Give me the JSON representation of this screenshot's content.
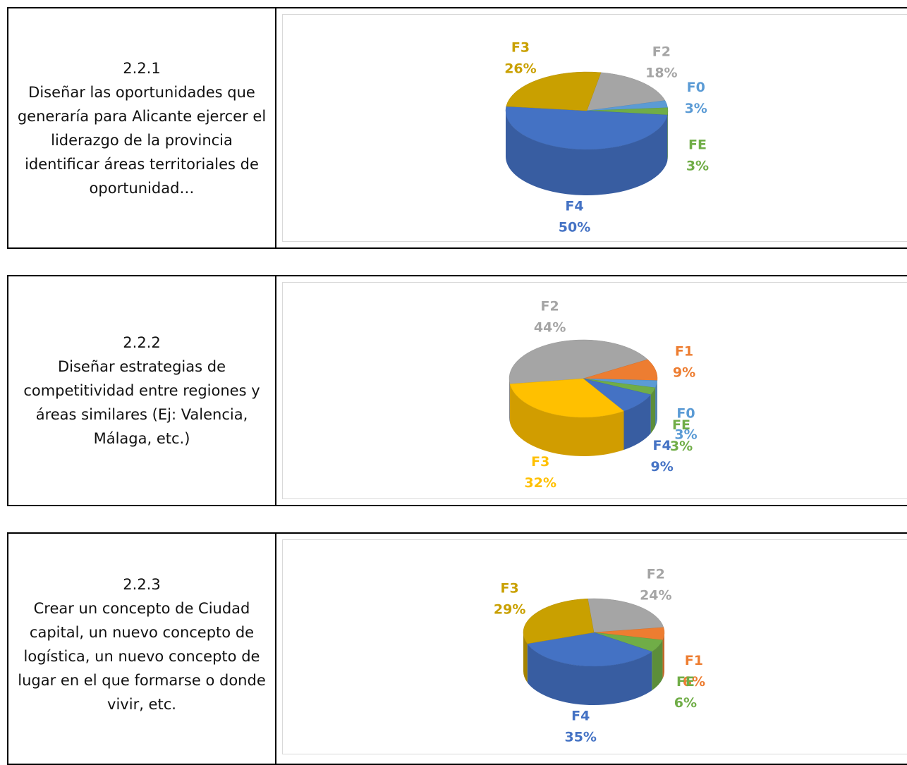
{
  "rows": [
    {
      "code": "2.2.1",
      "text": "Diseñar las oportunidades que generaría para Alicante ejercer el liderazgo de la provincia identificar áreas territoriales de oportunidad…"
    },
    {
      "code": "2.2.2",
      "text": "Diseñar estrategias de competitividad entre regiones y áreas similares (Ej: Valencia, Málaga, etc.)"
    },
    {
      "code": "2.2.3",
      "text": "Crear un concepto de Ciudad capital, un nuevo concepto de logística, un nuevo concepto de lugar en el que formarse o donde vivir, etc."
    }
  ],
  "chart_data": [
    {
      "type": "pie",
      "categories": [
        "F2",
        "F0",
        "FE",
        "F4",
        "F3"
      ],
      "values": [
        18,
        3,
        3,
        50,
        26
      ],
      "value_labels": [
        "18%",
        "3%",
        "3%",
        "50%",
        "26%"
      ],
      "colors": [
        "#a5a5a5",
        "#5b9bd5",
        "#70ad47",
        "#4472c4",
        "#c9a000"
      ]
    },
    {
      "type": "pie",
      "categories": [
        "F2",
        "F1",
        "F0",
        "FE",
        "F4",
        "F3"
      ],
      "values": [
        44,
        9,
        3,
        3,
        9,
        32
      ],
      "value_labels": [
        "44%",
        "9%",
        "3%",
        "3%",
        "9%",
        "32%"
      ],
      "colors": [
        "#a5a5a5",
        "#ed7d31",
        "#5b9bd5",
        "#70ad47",
        "#4472c4",
        "#ffc000"
      ]
    },
    {
      "type": "pie",
      "categories": [
        "F2",
        "F1",
        "FE",
        "F4",
        "F3"
      ],
      "values": [
        24,
        6,
        6,
        35,
        29
      ],
      "value_labels": [
        "24%",
        "6%",
        "6%",
        "35%",
        "29%"
      ],
      "colors": [
        "#a5a5a5",
        "#ed7d31",
        "#70ad47",
        "#4472c4",
        "#c9a000"
      ]
    }
  ]
}
